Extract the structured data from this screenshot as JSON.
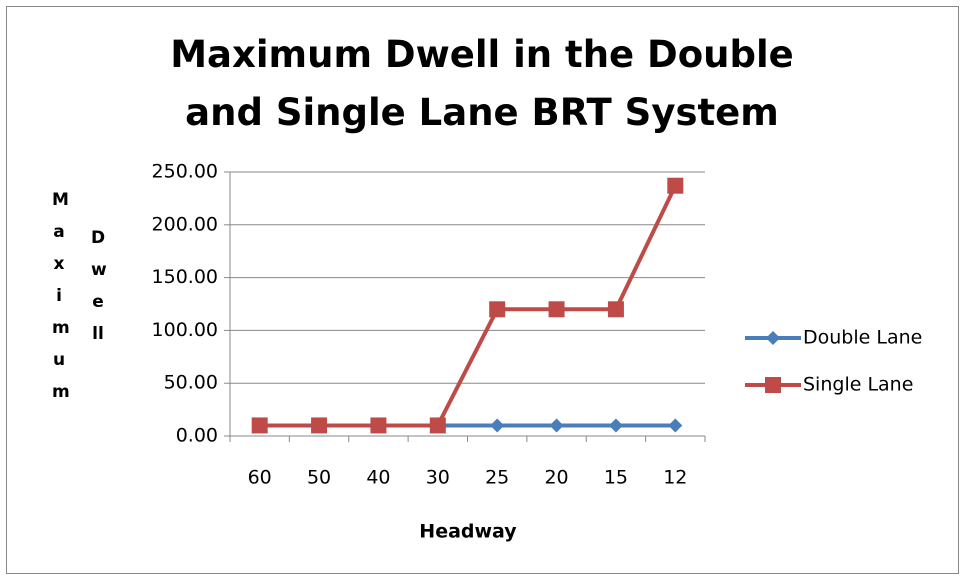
{
  "chart_data": {
    "type": "line",
    "title": "Maximum Dwell in the Double and Single Lane BRT System",
    "y_label": [
      "Maximum",
      "Dwell"
    ],
    "x_label": "Headway",
    "categories": [
      "60",
      "50",
      "40",
      "30",
      "25",
      "20",
      "15",
      "12"
    ],
    "series": [
      {
        "name": "Double Lane",
        "color": "#4a7ebb",
        "marker": "diamond",
        "values": [
          10,
          10,
          10,
          10,
          10,
          10,
          10,
          10
        ]
      },
      {
        "name": "Single Lane",
        "color": "#be4b48",
        "marker": "square",
        "values": [
          10,
          10,
          10,
          10,
          120,
          120,
          120,
          237
        ]
      }
    ],
    "ylim": [
      0,
      250
    ],
    "yticks": [
      {
        "value": 0,
        "label": "0.00"
      },
      {
        "value": 50,
        "label": "50.00"
      },
      {
        "value": 100,
        "label": "100.00"
      },
      {
        "value": 150,
        "label": "150.00"
      },
      {
        "value": 200,
        "label": "200.00"
      },
      {
        "value": 250,
        "label": "250.00"
      }
    ],
    "grid": true,
    "legend": "right"
  }
}
